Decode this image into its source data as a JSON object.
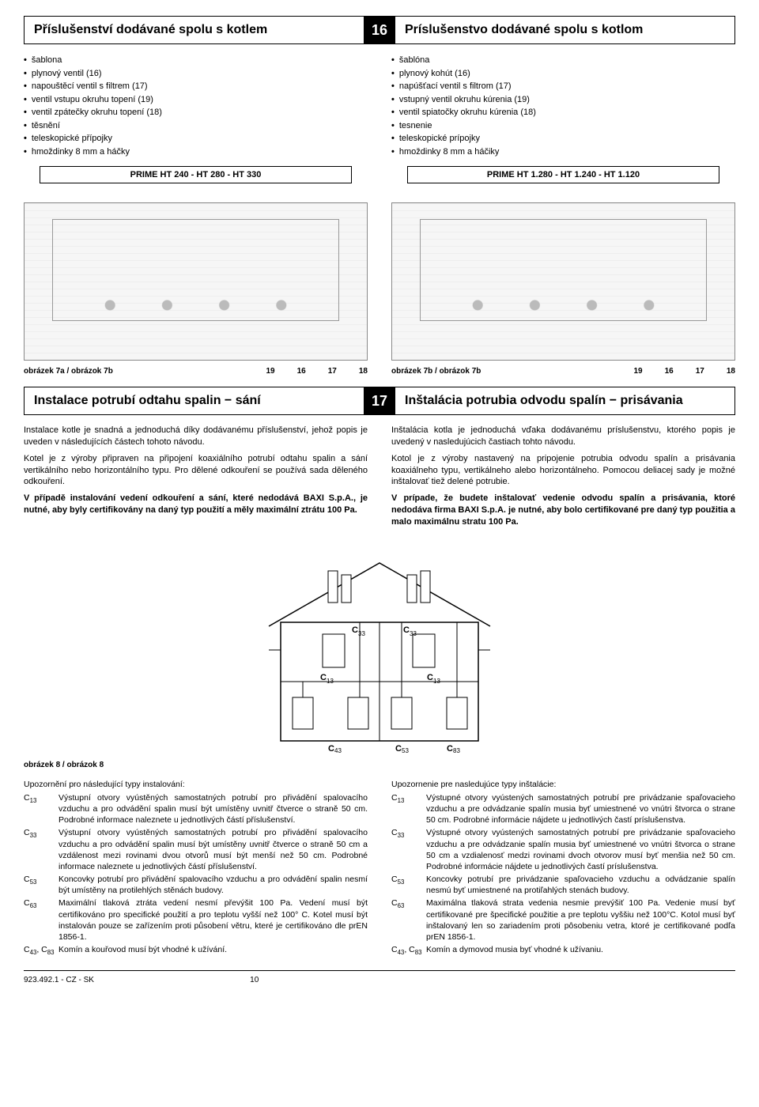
{
  "section16": {
    "number": "16",
    "left_title": "Příslušenství dodávané spolu s kotlem",
    "right_title": "Príslušenstvo dodávané spolu s kotlom",
    "left_items": [
      "šablona",
      "plynový ventil (16)",
      "napouštěcí ventil s filtrem (17)",
      "ventil vstupu okruhu topení (19)",
      "ventil zpátečky okruhu topení (18)",
      "těsnění",
      "teleskopické přípojky",
      "hmoždinky 8 mm a háčky"
    ],
    "right_items": [
      "šablóna",
      "plynový kohút (16)",
      "napúšťací ventil s filtrom (17)",
      "vstupný ventil okruhu kúrenia (19)",
      "ventil spiatočky okruhu kúrenia (18)",
      "tesnenie",
      "teleskopické prípojky",
      "hmoždinky 8 mm a háčiky"
    ],
    "left_model": "PRIME HT 240 - HT 280 - HT 330",
    "right_model": "PRIME HT 1.280 - HT 1.240 - HT 1.120",
    "left_caption": "obrázek 7a / obrázok 7b",
    "right_caption": "obrázek 7b / obrázok 7b",
    "caption_nums": [
      "19",
      "16",
      "17",
      "18"
    ]
  },
  "section17": {
    "number": "17",
    "left_title": "Instalace potrubí odtahu spalin − sání",
    "right_title": "Inštalácia potrubia odvodu spalín − prisávania",
    "left_p1": "Instalace kotle je snadná a jednoduchá díky dodávanému příslušenství, jehož popis je uveden v následujících částech tohoto návodu.",
    "left_p2": "Kotel je z výroby připraven na připojení koaxiálního potrubí odtahu spalin a sání vertikálního nebo horizontálního typu. Pro dělené odkouření se používá sada děleného odkouření.",
    "left_p3_bold": "V případě instalování vedení odkouření a sání, které nedodává BAXI S.p.A., je nutné, aby byly certifikovány na daný typ použití a měly maximální ztrátu 100 Pa.",
    "right_p1": "Inštalácia kotla je jednoduchá vďaka dodávanému príslušenstvu, ktorého popis je uvedený v nasledujúcich častiach tohto návodu.",
    "right_p2": "Kotol je z výroby nastavený na pripojenie potrubia odvodu spalín a prisávania koaxiálneho typu, vertikálneho alebo horizontálneho. Pomocou deliacej sady je možné inštalovať tiež delené potrubie.",
    "right_p3_bold": "V prípade, že budete inštalovať vedenie odvodu spalín a prisávania, ktoré nedodáva firma BAXI S.p.A. je nutné, aby bolo certifikované pre daný typ použitia a malo maximálnu stratu 100 Pa."
  },
  "house": {
    "caption": "obrázek 8 / obrázok 8",
    "labels": {
      "c33_l": "C",
      "c33_l_sub": "33",
      "c33_r": "C",
      "c33_r_sub": "33",
      "c13_l": "C",
      "c13_l_sub": "13",
      "c13_r": "C",
      "c13_r_sub": "13",
      "c43": "C",
      "c43_sub": "43",
      "c53": "C",
      "c53_sub": "53",
      "c83": "C",
      "c83_sub": "83"
    }
  },
  "defs_left": {
    "intro": "Upozornění pro následující typy instalování:",
    "items": [
      {
        "code": "C",
        "sub": "13",
        "desc": "Výstupní otvory vyústěných samostatných potrubí pro přivádění spalovacího vzduchu a pro odvádění spalin musí být umístěny uvnitř čtverce o straně 50 cm. Podrobné informace naleznete u jednotlivých částí příslušenství."
      },
      {
        "code": "C",
        "sub": "33",
        "desc": "Výstupní otvory vyústěných samostatných potrubí pro přivádění spalovacího vzduchu a pro odvádění spalin musí být umístěny uvnitř čtverce o straně 50 cm a vzdálenost mezi rovinami dvou otvorů musí být menší než 50 cm. Podrobné informace naleznete u jednotlivých částí příslušenství."
      },
      {
        "code": "C",
        "sub": "53",
        "desc": "Koncovky potrubí pro přivádění spalovacího vzduchu a pro odvádění spalin nesmí být umístěny na protilehlých stěnách budovy."
      },
      {
        "code": "C",
        "sub": "63",
        "desc": "Maximální tlaková ztráta vedení nesmí převýšit 100 Pa. Vedení musí být certifikováno pro specifické použití a pro teplotu vyšší než 100° C. Kotel musí být instalován pouze se zařízením proti působení větru, které je certifikováno dle prEN 1856-1."
      },
      {
        "code": "C",
        "sub": "43",
        "extra_code": "C",
        "extra_sub": "83",
        "desc": "Komín a kouřovod musí být vhodné k užívání."
      }
    ]
  },
  "defs_right": {
    "intro": "Upozornenie pre nasledujúce typy inštalácie:",
    "items": [
      {
        "code": "C",
        "sub": "13",
        "desc": "Výstupné otvory vyústených samostatných potrubí pre privádzanie spaľovacieho vzduchu a pre odvádzanie spalín musia byť umiestnené vo vnútri štvorca o strane 50 cm. Podrobné informácie nájdete u jednotlivých častí príslušenstva."
      },
      {
        "code": "C",
        "sub": "33",
        "desc": "Výstupné otvory vyústených samostatných potrubí pre privádzanie spaľovacieho vzduchu a pre odvádzanie spalín musia byť umiestnené vo vnútri štvorca o strane 50 cm a vzdialenosť medzi rovinami dvoch otvorov musí byť menšia než 50 cm. Podrobné informácie nájdete u jednotlivých častí príslušenstva."
      },
      {
        "code": "C",
        "sub": "53",
        "desc": "Koncovky potrubí pre privádzanie spaľovacieho vzduchu a odvádzanie spalín nesmú byť umiestnené na protiľahlých stenách budovy."
      },
      {
        "code": "C",
        "sub": "63",
        "desc": "Maximálna tlaková strata vedenia nesmie prevýšiť 100 Pa. Vedenie musí byť certifikované pre špecifické použitie a pre teplotu vyššiu než 100°C. Kotol musí byť inštalovaný len so zariadením proti pôsobeniu vetra, ktoré je certifikované podľa prEN 1856-1."
      },
      {
        "code": "C",
        "sub": "43",
        "extra_code": "C",
        "extra_sub": "83",
        "desc": "Komín a dymovod musia byť vhodné k užívaniu."
      }
    ]
  },
  "footer": {
    "doc_ref": "923.492.1 - CZ - SK",
    "page": "10"
  }
}
